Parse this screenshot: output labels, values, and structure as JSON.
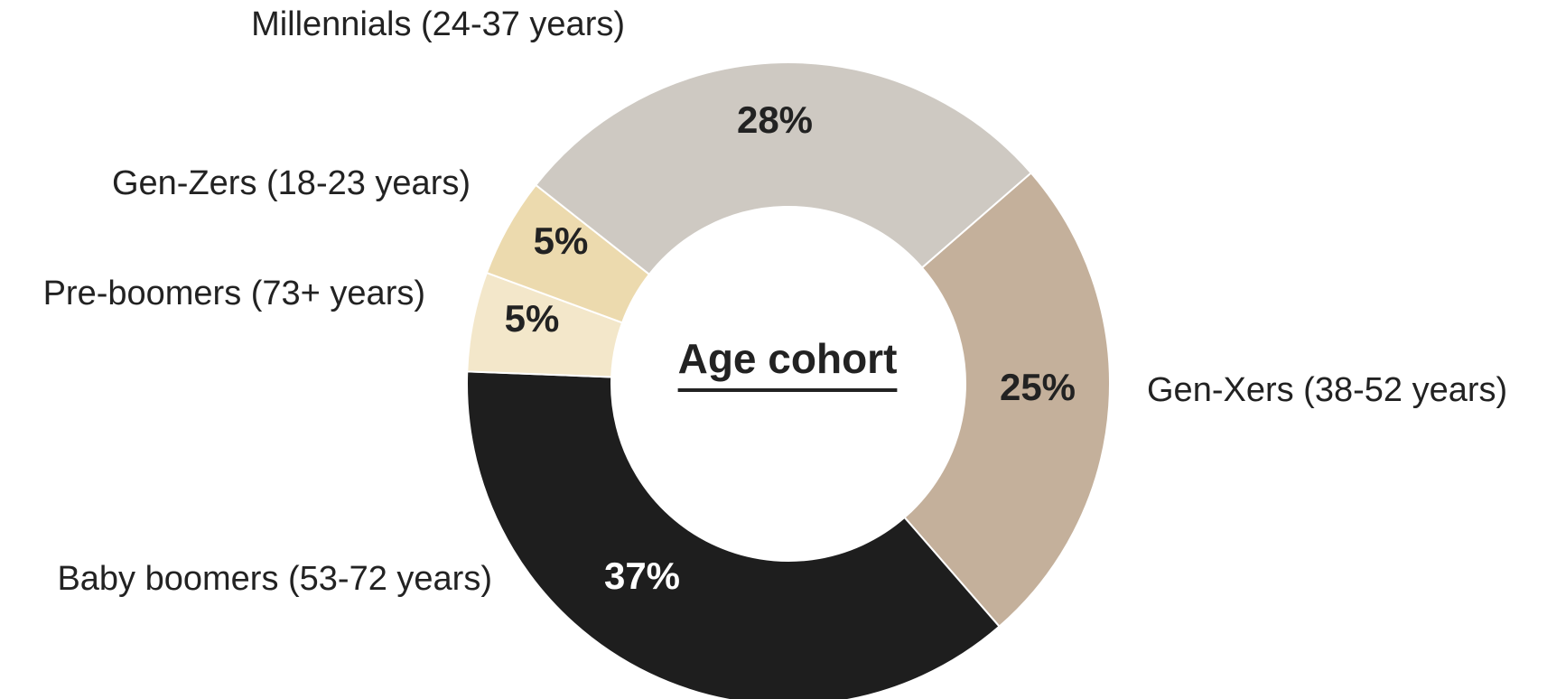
{
  "chart_data": {
    "type": "donut",
    "title": "Age cohort",
    "categories": [
      "Gen-Xers (38-52 years)",
      "Baby boomers (53-72 years)",
      "Pre-boomers (73+ years)",
      "Gen-Zers (18-23 years)",
      "Millennials (24-37 years)"
    ],
    "values": [
      25,
      37,
      5,
      5,
      28
    ],
    "value_labels": [
      "25%",
      "37%",
      "5%",
      "5%",
      "28%"
    ],
    "colors": [
      "#c4b09b",
      "#1e1e1e",
      "#f3e7ca",
      "#ecdaae",
      "#cec9c2"
    ]
  }
}
